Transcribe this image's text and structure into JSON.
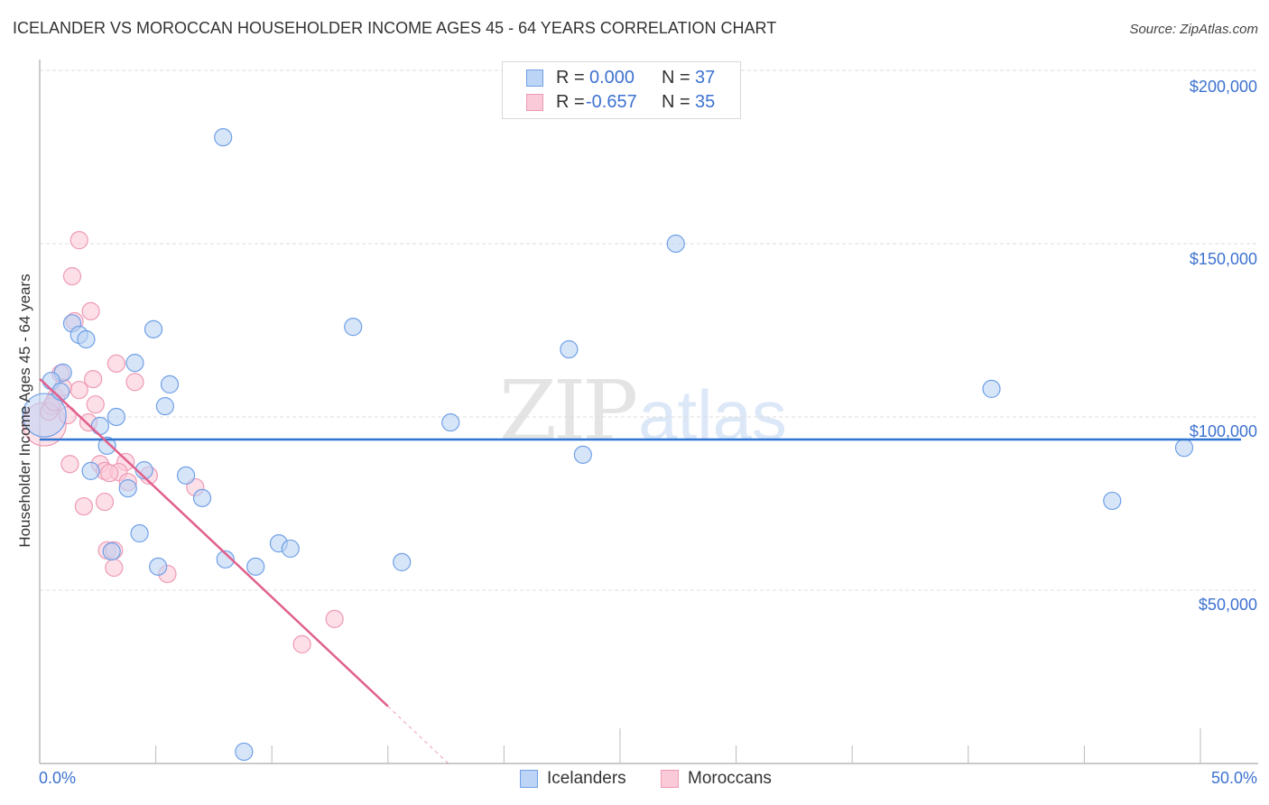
{
  "header": {
    "title": "ICELANDER VS MOROCCAN HOUSEHOLDER INCOME AGES 45 - 64 YEARS CORRELATION CHART",
    "source": "Source: ZipAtlas.com"
  },
  "legend": {
    "rows": [
      {
        "series": "Icelanders",
        "r_label": "R =",
        "r_value": "0.000",
        "n_label": "N =",
        "n_value": "37",
        "fill": "#bcd4f5",
        "stroke": "#6fa0e6"
      },
      {
        "series": "Moroccans",
        "r_label": "R =",
        "r_value": "-0.657",
        "n_label": "N =",
        "n_value": "35",
        "fill": "#fbcad8",
        "stroke": "#ee9ab4"
      }
    ]
  },
  "bottom_legend": {
    "items": [
      {
        "label": "Icelanders",
        "fill": "#bcd4f5",
        "stroke": "#6fa0e6"
      },
      {
        "label": "Moroccans",
        "fill": "#fbcad8",
        "stroke": "#ee9ab4"
      }
    ]
  },
  "watermark": {
    "zip": "ZIP",
    "atlas": "atlas"
  },
  "axes": {
    "ylabel": "Householder Income Ages 45 - 64 years",
    "yticks": [
      "$200,000",
      "$150,000",
      "$100,000",
      "$50,000"
    ],
    "xticks": [
      "0.0%",
      "50.0%"
    ]
  },
  "colors": {
    "blue_fill": "#bcd4f5",
    "blue_stroke": "#6fa0e6",
    "blue_line": "#2f74d0",
    "pink_fill": "#fbcad8",
    "pink_stroke": "#ee9ab4",
    "pink_line": "#e0608c",
    "tick_text": "#3d72d0",
    "grid": "#dddddd"
  },
  "chart_data": {
    "type": "scatter",
    "title": "ICELANDER VS MOROCCAN HOUSEHOLDER INCOME AGES 45 - 64 YEARS CORRELATION CHART",
    "xlabel": "",
    "ylabel": "Householder Income Ages 45 - 64 years",
    "xlim": [
      0,
      50
    ],
    "ylim": [
      0,
      210000
    ],
    "x_unit": "%",
    "y_ticks": [
      50000,
      100000,
      150000,
      200000
    ],
    "x_tick_labels": [
      "0.0%",
      "50.0%"
    ],
    "grid": true,
    "legend_position": "top-center (stats) and bottom-center (series)",
    "series": [
      {
        "name": "Icelanders",
        "R": 0.0,
        "N": 37,
        "trend": {
          "x": [
            0,
            50
          ],
          "y": [
            93500,
            93500
          ]
        },
        "points": [
          [
            0.2,
            100500,
            "large"
          ],
          [
            7.9,
            180700
          ],
          [
            27.4,
            150000
          ],
          [
            1.4,
            127000
          ],
          [
            1.7,
            123700
          ],
          [
            2.0,
            122400
          ],
          [
            4.9,
            125300
          ],
          [
            13.5,
            126000
          ],
          [
            22.8,
            119500
          ],
          [
            4.1,
            115600
          ],
          [
            1.0,
            112800
          ],
          [
            0.5,
            110400
          ],
          [
            5.6,
            109400
          ],
          [
            0.9,
            107300
          ],
          [
            5.4,
            103100
          ],
          [
            41.0,
            108100
          ],
          [
            3.3,
            100000
          ],
          [
            2.6,
            97400
          ],
          [
            17.7,
            98400
          ],
          [
            2.9,
            91700
          ],
          [
            49.3,
            91100
          ],
          [
            23.4,
            89100
          ],
          [
            2.2,
            84400
          ],
          [
            4.5,
            84600
          ],
          [
            6.3,
            83100
          ],
          [
            3.8,
            79400
          ],
          [
            7.0,
            76600
          ],
          [
            46.2,
            75800
          ],
          [
            4.3,
            66400
          ],
          [
            10.3,
            63500
          ],
          [
            10.8,
            62000
          ],
          [
            3.1,
            61200
          ],
          [
            8.0,
            58900
          ],
          [
            15.6,
            58100
          ],
          [
            5.1,
            56800
          ],
          [
            9.3,
            56800
          ],
          [
            8.8,
            3400
          ]
        ]
      },
      {
        "name": "Moroccans",
        "R": -0.657,
        "N": 35,
        "trend": {
          "x": [
            0,
            15
          ],
          "y": [
            111000,
            16500
          ],
          "dashed_extension": {
            "x": [
              15,
              17.6
            ],
            "y": [
              16500,
              0
            ]
          }
        },
        "points": [
          [
            0.2,
            97900,
            "large"
          ],
          [
            1.7,
            151000
          ],
          [
            1.4,
            140600
          ],
          [
            2.2,
            130500
          ],
          [
            1.5,
            127600
          ],
          [
            3.3,
            115400
          ],
          [
            0.9,
            112500
          ],
          [
            2.3,
            110900
          ],
          [
            4.1,
            110100
          ],
          [
            1.7,
            107800
          ],
          [
            0.7,
            105700
          ],
          [
            2.4,
            103600
          ],
          [
            0.5,
            103100
          ],
          [
            1.2,
            100500
          ],
          [
            2.1,
            98400
          ],
          [
            0.4,
            101500
          ],
          [
            1.3,
            86400
          ],
          [
            2.6,
            86400
          ],
          [
            3.7,
            87000
          ],
          [
            2.8,
            84400
          ],
          [
            3.4,
            84100
          ],
          [
            4.7,
            83100
          ],
          [
            3.8,
            81200
          ],
          [
            6.7,
            79700
          ],
          [
            2.8,
            75500
          ],
          [
            1.9,
            74200
          ],
          [
            2.9,
            61500
          ],
          [
            3.2,
            61500
          ],
          [
            3.2,
            56500
          ],
          [
            5.5,
            54700
          ],
          [
            12.7,
            41700
          ],
          [
            11.3,
            34400
          ],
          [
            1.0,
            108500
          ],
          [
            0.6,
            104300
          ],
          [
            3.0,
            83800
          ]
        ]
      }
    ]
  }
}
